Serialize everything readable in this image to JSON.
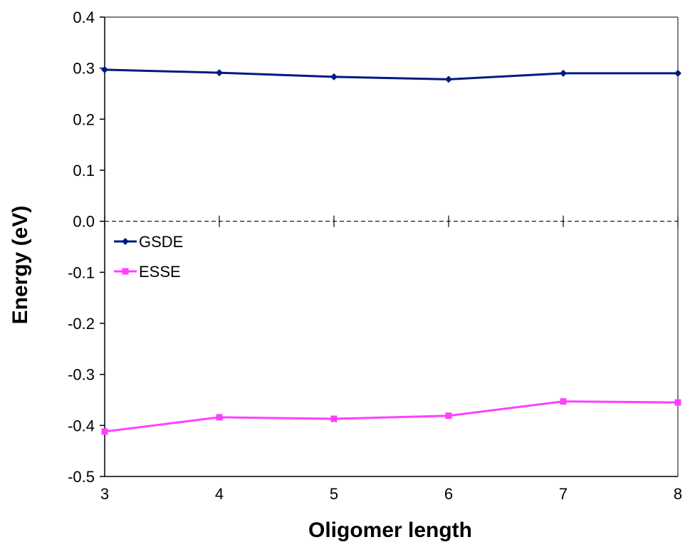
{
  "chart_data": {
    "type": "line",
    "title": "",
    "xlabel": "Oligomer length",
    "ylabel": "Energy (eV)",
    "x": [
      3,
      4,
      5,
      6,
      7,
      8
    ],
    "xlim": [
      3,
      8
    ],
    "ylim": [
      -0.5,
      0.4
    ],
    "yticks": [
      0.4,
      0.3,
      0.2,
      0.1,
      0.0,
      -0.1,
      -0.2,
      -0.3,
      -0.4,
      -0.5
    ],
    "ytick_labels": [
      "0.4",
      "0.3",
      "0.2",
      "0.1",
      "0.0",
      "-0.1",
      "-0.2",
      "-0.3",
      "-0.4",
      "-0.5"
    ],
    "xticks": [
      3,
      4,
      5,
      6,
      7,
      8
    ],
    "xtick_labels": [
      "3",
      "4",
      "5",
      "6",
      "7",
      "8"
    ],
    "zero_line": "dashed",
    "grid": false,
    "legend": "left-center",
    "series": [
      {
        "name": "GSDE",
        "color": "#001a80",
        "marker": "diamond",
        "values": [
          0.297,
          0.291,
          0.283,
          0.278,
          0.29,
          0.29
        ]
      },
      {
        "name": "ESSE",
        "color": "#ff40ff",
        "marker": "square",
        "values": [
          -0.412,
          -0.384,
          -0.387,
          -0.381,
          -0.353,
          -0.355
        ]
      }
    ]
  }
}
